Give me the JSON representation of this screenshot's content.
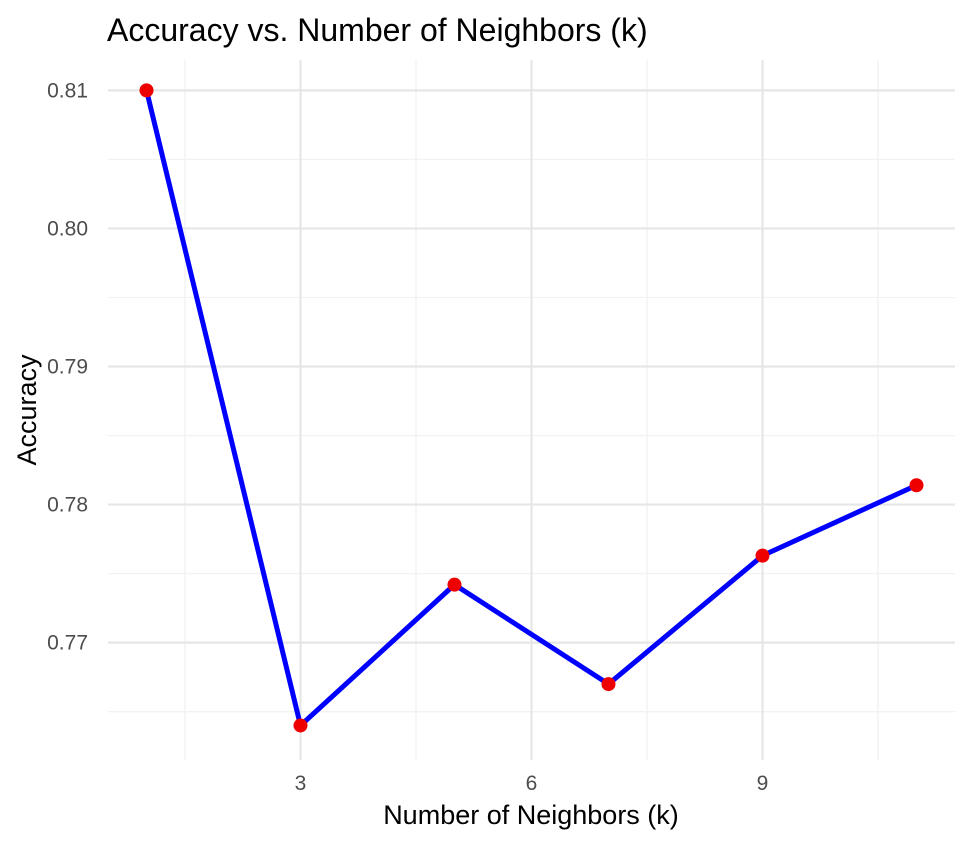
{
  "chart_data": {
    "type": "line",
    "title": "Accuracy vs. Number of Neighbors (k)",
    "xlabel": "Number of Neighbors (k)",
    "ylabel": "Accuracy",
    "x": [
      1,
      3,
      5,
      7,
      9,
      11
    ],
    "series": [
      {
        "values": [
          0.81,
          0.764,
          0.7742,
          0.767,
          0.7763,
          0.7814
        ]
      }
    ],
    "xlim": [
      0.5,
      11.5
    ],
    "ylim": [
      0.7615,
      0.8122
    ],
    "x_ticks": [
      3,
      6,
      9
    ],
    "x_tick_labels": [
      "3",
      "6",
      "9"
    ],
    "x_minor_ticks": [
      1.5,
      4.5,
      7.5,
      10.5
    ],
    "y_ticks": [
      0.77,
      0.78,
      0.79,
      0.8,
      0.81
    ],
    "y_tick_labels": [
      "0.77",
      "0.78",
      "0.79",
      "0.80",
      "0.81"
    ],
    "y_minor_ticks": [
      0.765,
      0.775,
      0.785,
      0.795,
      0.805
    ],
    "grid": true,
    "legend": "none",
    "colors": {
      "line": "#0000ff",
      "points": "#ee0000",
      "grid_major": "#e6e6e6",
      "grid_minor": "#f2f2f2"
    }
  }
}
